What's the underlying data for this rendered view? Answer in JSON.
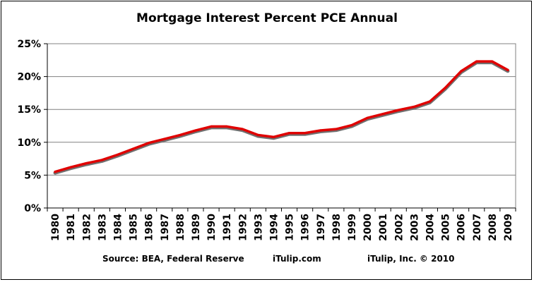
{
  "chart_data": {
    "type": "line",
    "title": "Mortgage Interest Percent PCE Annual",
    "xlabel": "",
    "ylabel": "",
    "x": [
      "1980",
      "1981",
      "1982",
      "1983",
      "1984",
      "1985",
      "1986",
      "1987",
      "1988",
      "1989",
      "1990",
      "1991",
      "1992",
      "1993",
      "1994",
      "1995",
      "1996",
      "1997",
      "1998",
      "1999",
      "2000",
      "2001",
      "2002",
      "2003",
      "2004",
      "2005",
      "2006",
      "2007",
      "2008",
      "2009"
    ],
    "series": [
      {
        "values": [
          5.5,
          6.2,
          6.8,
          7.3,
          8.1,
          9.0,
          9.9,
          10.5,
          11.1,
          11.8,
          12.4,
          12.4,
          12.0,
          11.1,
          10.8,
          11.4,
          11.4,
          11.8,
          12.0,
          12.6,
          13.7,
          14.3,
          14.9,
          15.4,
          16.2,
          18.3,
          20.8,
          22.3,
          22.3,
          21.0
        ],
        "color": "#e00000"
      }
    ],
    "yticks": [
      "0%",
      "5%",
      "10%",
      "15%",
      "20%",
      "25%"
    ],
    "ylim": [
      0,
      25
    ],
    "grid": true,
    "legend": "none"
  },
  "footer": {
    "source": "Source: BEA, Federal Reserve",
    "site": "iTulip.com",
    "copyright": "iTulip, Inc. © 2010"
  }
}
